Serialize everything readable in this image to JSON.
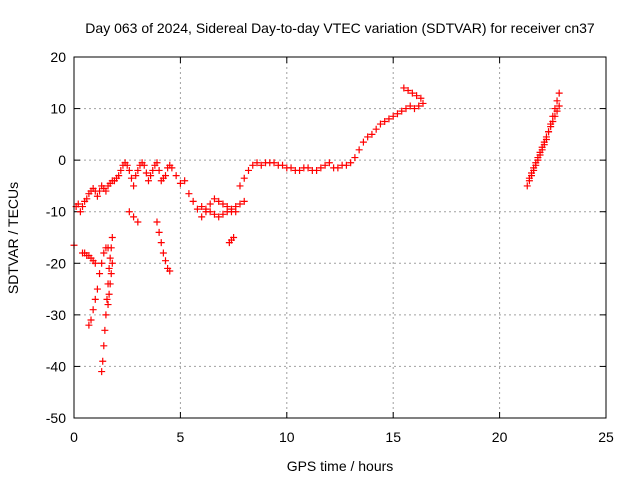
{
  "chart_data": {
    "type": "scatter",
    "title": "Day 063 of 2024, Sidereal Day-to-day VTEC variation (SDTVAR) for receiver cn37",
    "xlabel": "GPS time / hours",
    "ylabel": "SDTVAR / TECUs",
    "xlim": [
      0,
      25
    ],
    "ylim": [
      -50,
      20
    ],
    "xticks": [
      0,
      5,
      10,
      15,
      20,
      25
    ],
    "yticks": [
      -50,
      -40,
      -30,
      -20,
      -10,
      0,
      10,
      20
    ],
    "grid": true,
    "marker": "+",
    "series_color": "#ff0000",
    "series": [
      {
        "name": "cn37",
        "x": [
          0.0,
          0.1,
          0.2,
          0.3,
          0.4,
          0.5,
          0.6,
          0.7,
          0.8,
          0.9,
          1.0,
          1.1,
          1.2,
          1.3,
          1.4,
          1.5,
          1.6,
          1.7,
          1.8,
          1.9,
          2.0,
          2.1,
          2.2,
          2.3,
          2.4,
          2.5,
          2.6,
          2.7,
          2.8,
          2.9,
          3.0,
          3.1,
          3.2,
          3.3,
          3.4,
          3.5,
          3.6,
          3.7,
          3.8,
          3.9,
          4.0,
          4.1,
          4.2,
          4.3,
          4.4,
          4.5,
          0.4,
          0.5,
          0.6,
          0.7,
          0.8,
          0.9,
          1.0,
          0.7,
          0.8,
          0.9,
          1.0,
          1.1,
          1.2,
          1.3,
          1.4,
          1.5,
          1.6,
          1.3,
          1.35,
          1.4,
          1.45,
          1.5,
          1.55,
          1.6,
          1.65,
          1.7,
          1.75,
          1.8,
          1.6,
          1.65,
          1.7,
          1.75,
          1.8,
          2.6,
          2.8,
          3.0,
          3.9,
          4.0,
          4.1,
          4.2,
          4.3,
          4.4,
          4.5,
          4.6,
          4.8,
          5.0,
          5.2,
          5.4,
          5.6,
          5.8,
          6.0,
          6.2,
          6.4,
          6.6,
          6.8,
          7.0,
          7.2,
          7.4,
          7.6,
          7.8,
          8.0,
          8.2,
          8.4,
          8.6,
          8.8,
          9.0,
          9.2,
          9.4,
          9.6,
          9.8,
          10.0,
          10.2,
          10.4,
          10.6,
          10.8,
          11.0,
          11.2,
          11.4,
          11.6,
          11.8,
          12.0,
          12.2,
          12.4,
          12.6,
          12.8,
          13.0,
          13.2,
          13.4,
          13.6,
          13.8,
          14.0,
          14.2,
          14.4,
          14.6,
          14.8,
          15.0,
          15.2,
          15.4,
          15.6,
          15.8,
          16.0,
          16.2,
          16.4,
          15.5,
          15.7,
          15.9,
          16.1,
          16.3,
          7.3,
          7.4,
          7.5,
          6.0,
          6.2,
          6.4,
          6.6,
          6.8,
          7.0,
          7.2,
          7.4,
          7.6,
          7.8,
          8.0,
          21.3,
          21.4,
          21.5,
          21.6,
          21.7,
          21.8,
          21.9,
          22.0,
          22.1,
          22.2,
          22.3,
          22.4,
          22.5,
          22.6,
          22.7,
          22.8,
          21.4,
          21.5,
          21.6,
          21.7,
          21.8,
          21.9,
          22.0,
          22.1,
          22.2,
          22.3,
          22.4,
          22.5,
          22.6,
          22.7,
          22.8
        ],
        "y": [
          -16.5,
          -9,
          -8.5,
          -10,
          -9,
          -8,
          -7.5,
          -6.5,
          -6,
          -5.5,
          -6,
          -7,
          -6,
          -5,
          -5.5,
          -6,
          -5,
          -4.5,
          -4,
          -4,
          -3.5,
          -3,
          -2,
          -1,
          -0.5,
          -1,
          -2,
          -3.5,
          -5,
          -3,
          -2,
          -1,
          -0.5,
          -1,
          -2.5,
          -4,
          -3,
          -2,
          -1,
          -0.5,
          -2,
          -4,
          -3.5,
          -3,
          -1.5,
          -1,
          -18,
          -18,
          -18.5,
          -18.5,
          -19,
          -19.5,
          -20,
          -32,
          -31,
          -29,
          -27,
          -25,
          -22,
          -20,
          -18,
          -17,
          -17,
          -41,
          -39,
          -36,
          -33,
          -30,
          -27,
          -24,
          -21,
          -19,
          -17,
          -15,
          -28,
          -26,
          -24,
          -22,
          -20,
          -10,
          -11,
          -12,
          -12,
          -14,
          -16,
          -18,
          -19.5,
          -21,
          -21.5,
          -1.5,
          -3,
          -4.5,
          -4,
          -6.5,
          -8,
          -9.5,
          -11,
          -10,
          -8.5,
          -7.5,
          -8,
          -8.5,
          -9,
          -10,
          -10,
          -5,
          -3.5,
          -2,
          -1,
          -0.5,
          -1,
          -0.5,
          -0.5,
          -0.5,
          -1,
          -1,
          -1.5,
          -1.5,
          -2,
          -2,
          -1.5,
          -1.5,
          -2,
          -2,
          -1.5,
          -1,
          -0.5,
          -1.5,
          -1.5,
          -1,
          -1,
          -0.5,
          0.5,
          2,
          3.5,
          4.5,
          5,
          6,
          7,
          7.5,
          8,
          8.5,
          9,
          9.5,
          10,
          10.5,
          10,
          10.5,
          11,
          14,
          13.5,
          13,
          12.5,
          12,
          -16,
          -15.5,
          -15,
          -9,
          -9.5,
          -10,
          -10.5,
          -11,
          -10.5,
          -10,
          -9.5,
          -9,
          -8.5,
          -8,
          -5,
          -4,
          -3,
          -2,
          -1,
          0,
          1,
          2,
          3,
          4,
          5.5,
          7,
          8.5,
          10,
          11.5,
          13,
          -3.5,
          -2.5,
          -1.5,
          -0.5,
          0.5,
          1.5,
          2.5,
          3.5,
          4.5,
          5.5,
          6.5,
          7.5,
          8.5,
          9.5,
          10.5
        ]
      }
    ]
  }
}
